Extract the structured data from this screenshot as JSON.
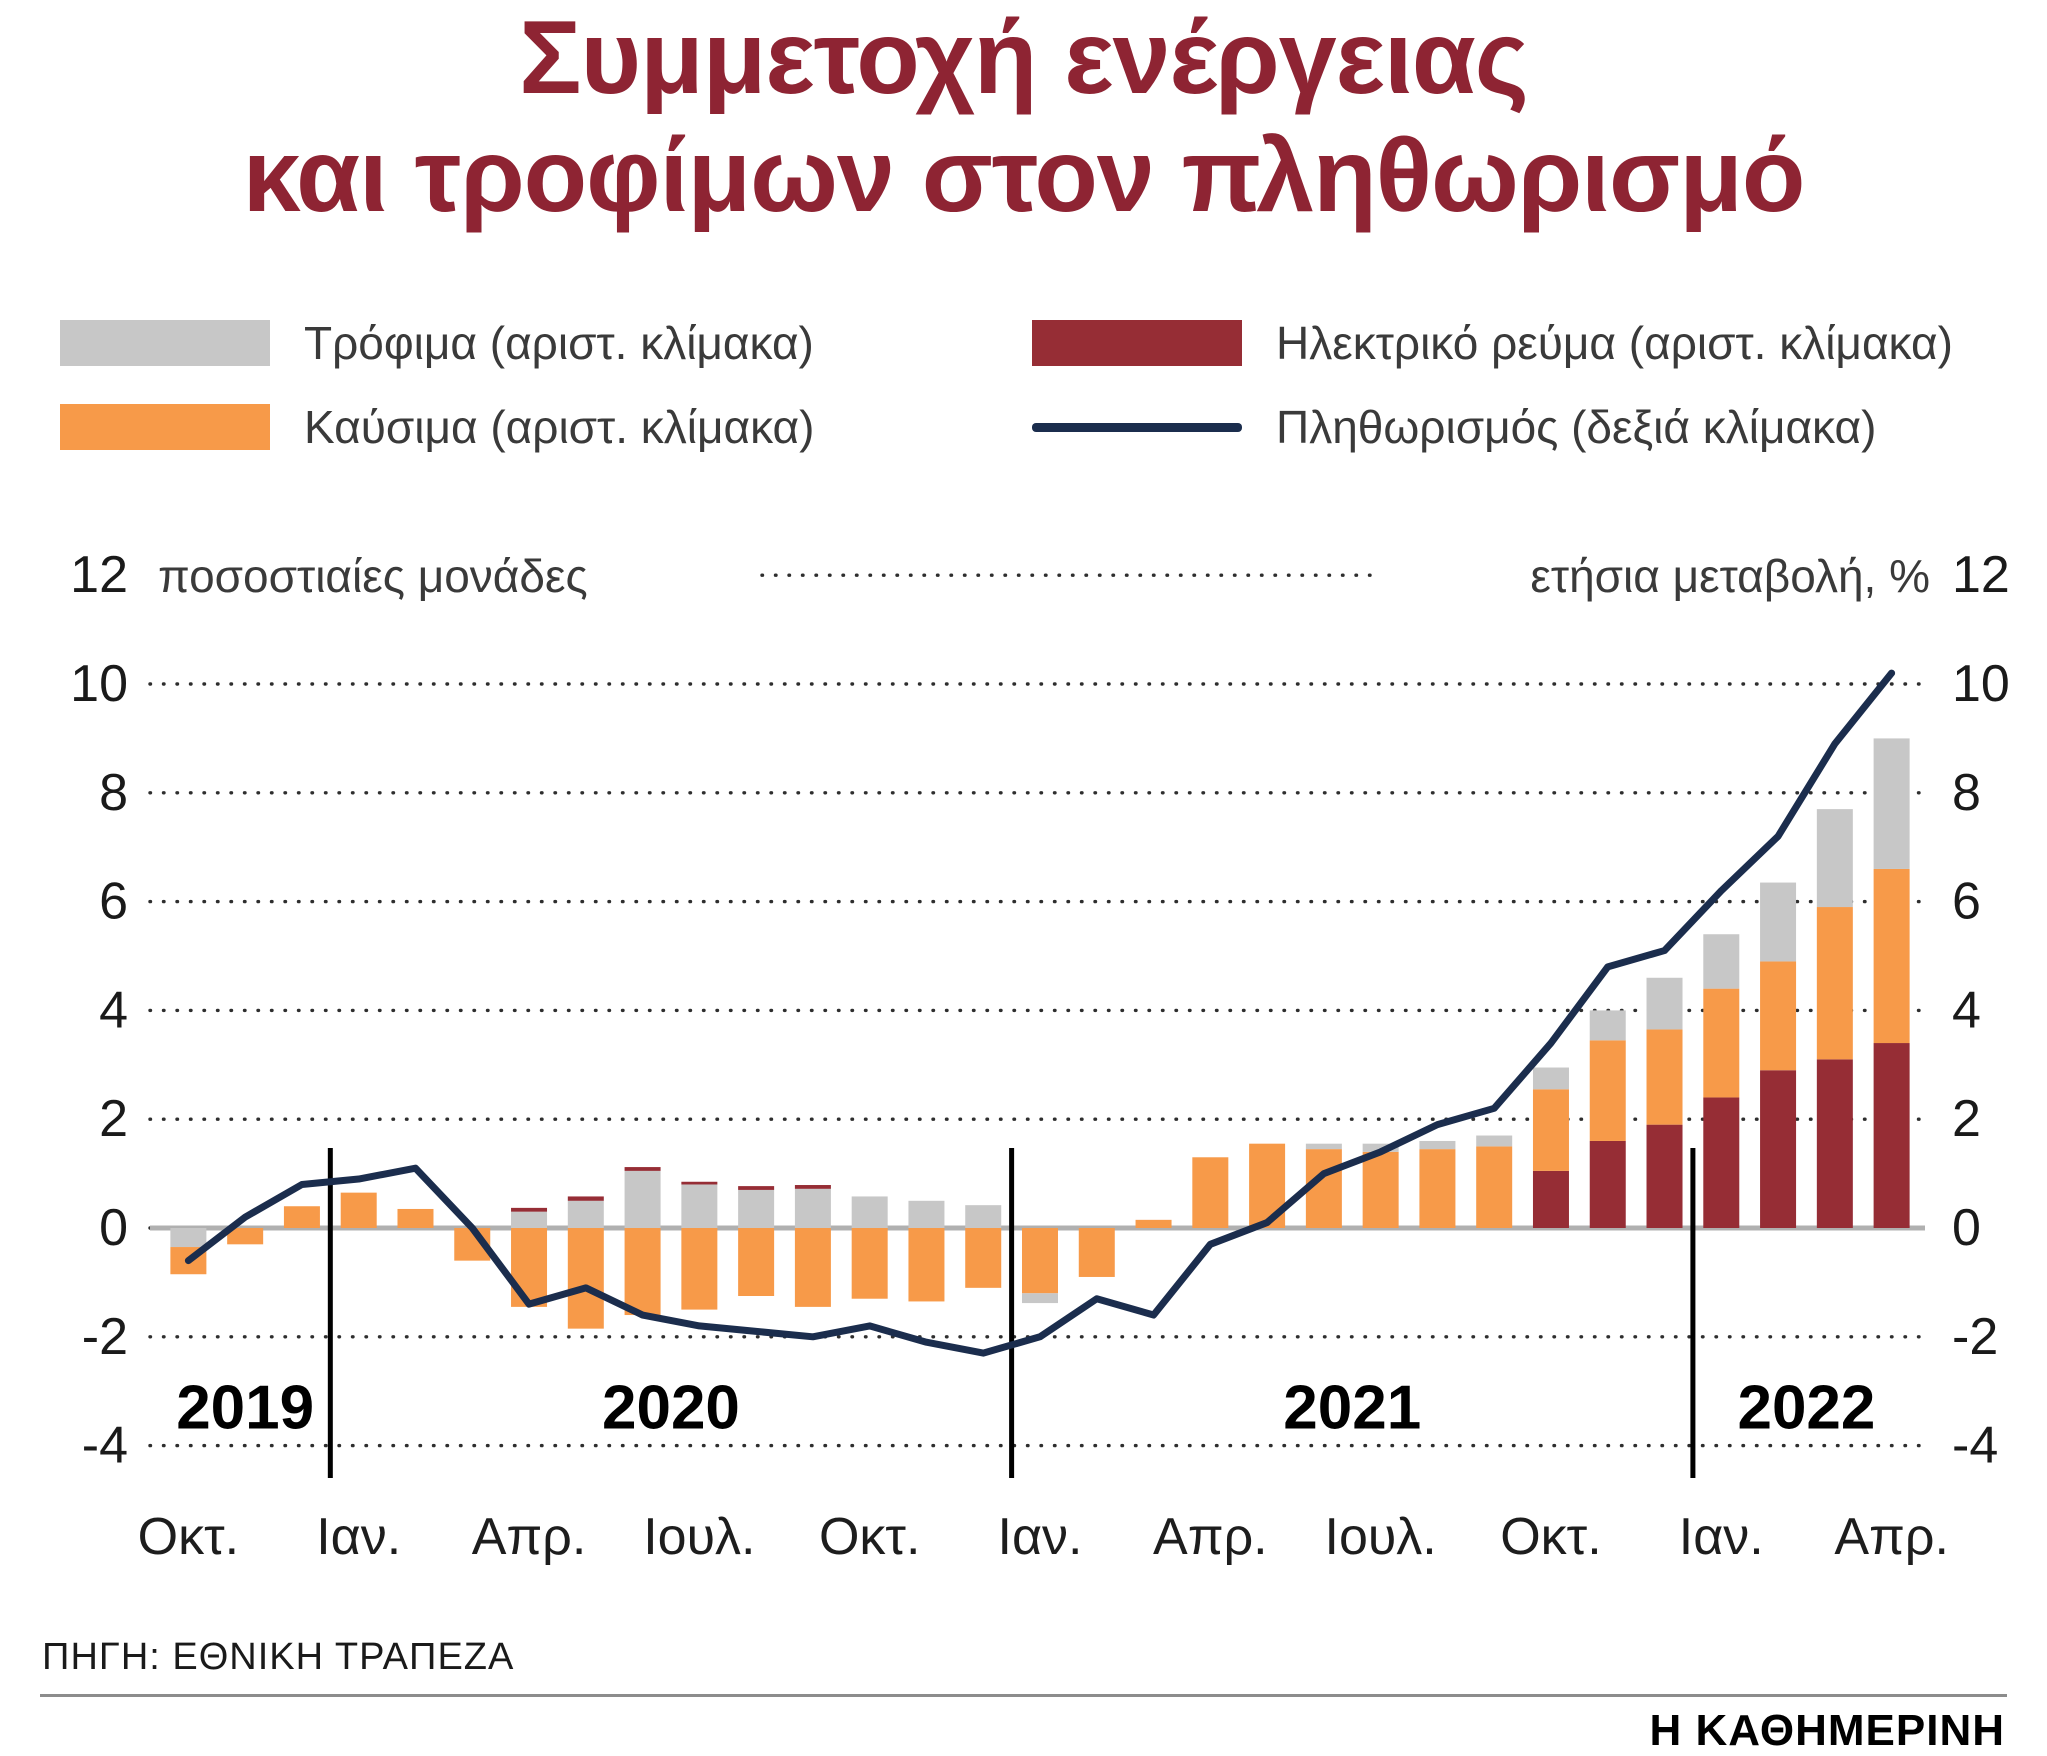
{
  "title": {
    "line1": "Συμμετοχή ενέργειας",
    "line2": "και τροφίμων στον πληθωρισμό"
  },
  "colors": {
    "title": "#8e2433",
    "bar_food": "#c7c7c7",
    "bar_fuel": "#f79a49",
    "bar_electricity": "#962d35",
    "inflation_line": "#1b2d4d"
  },
  "legend": [
    {
      "key": "food",
      "label": "Τρόφιμα (αριστ. κλίμακα)",
      "color": "#c7c7c7",
      "type": "rect"
    },
    {
      "key": "fuel",
      "label": "Καύσιμα (αριστ. κλίμακα)",
      "color": "#f79a49",
      "type": "rect"
    },
    {
      "key": "electricity",
      "label": "Ηλεκτρικό ρεύμα (αριστ. κλίμακα)",
      "color": "#962d35",
      "type": "rect"
    },
    {
      "key": "inflation",
      "label": "Πληθωρισμός (δεξιά κλίμακα)",
      "color": "#1b2d4d",
      "type": "line"
    }
  ],
  "axis_captions": {
    "left": "ποσοστιαίες μονάδες",
    "right": "ετήσια μεταβολή, %"
  },
  "chart_data": {
    "type": "bar",
    "stacked": true,
    "grid": true,
    "ylim": [
      -4,
      12
    ],
    "y_ticks": [
      12,
      10,
      8,
      6,
      4,
      2,
      0,
      -2,
      -4
    ],
    "left_axis_unit": "ποσοστιαίες μονάδες",
    "right_axis_unit": "ετήσια μεταβολή, %",
    "series_colors": {
      "food": "#c7c7c7",
      "fuel": "#f79a49",
      "elec": "#962d35"
    },
    "line_color": "#1b2d4d",
    "months": [
      "2019-10",
      "2019-11",
      "2019-12",
      "2020-01",
      "2020-02",
      "2020-03",
      "2020-04",
      "2020-05",
      "2020-06",
      "2020-07",
      "2020-08",
      "2020-09",
      "2020-10",
      "2020-11",
      "2020-12",
      "2021-01",
      "2021-02",
      "2021-03",
      "2021-04",
      "2021-05",
      "2021-06",
      "2021-07",
      "2021-08",
      "2021-09",
      "2021-10",
      "2021-11",
      "2021-12",
      "2022-01",
      "2022-02",
      "2022-03",
      "2022-04"
    ],
    "x_tick_labels": [
      {
        "index": 0,
        "label": "Οκτ."
      },
      {
        "index": 3,
        "label": "Ιαν."
      },
      {
        "index": 6,
        "label": "Απρ."
      },
      {
        "index": 9,
        "label": "Ιουλ."
      },
      {
        "index": 12,
        "label": "Οκτ."
      },
      {
        "index": 15,
        "label": "Ιαν."
      },
      {
        "index": 18,
        "label": "Απρ."
      },
      {
        "index": 21,
        "label": "Ιουλ."
      },
      {
        "index": 24,
        "label": "Οκτ."
      },
      {
        "index": 27,
        "label": "Ιαν."
      },
      {
        "index": 30,
        "label": "Απρ."
      }
    ],
    "year_labels": [
      {
        "label": "2019",
        "from": 0,
        "to": 2
      },
      {
        "label": "2020",
        "from": 3,
        "to": 14
      },
      {
        "label": "2021",
        "from": 15,
        "to": 26
      },
      {
        "label": "2022",
        "from": 27,
        "to": 30
      }
    ],
    "year_dividers_after_index": [
      2,
      14,
      26
    ],
    "bars": [
      {
        "month": "2019-10",
        "segments": [
          [
            "food",
            -0.35
          ],
          [
            "fuel",
            -0.5
          ]
        ]
      },
      {
        "month": "2019-11",
        "segments": [
          [
            "fuel",
            -0.3
          ]
        ]
      },
      {
        "month": "2019-12",
        "segments": [
          [
            "fuel",
            0.4
          ]
        ]
      },
      {
        "month": "2020-01",
        "segments": [
          [
            "fuel",
            0.65
          ]
        ]
      },
      {
        "month": "2020-02",
        "segments": [
          [
            "fuel",
            0.35
          ]
        ]
      },
      {
        "month": "2020-03",
        "segments": [
          [
            "fuel",
            -0.6
          ]
        ]
      },
      {
        "month": "2020-04",
        "segments": [
          [
            "food",
            0.3
          ],
          [
            "elec",
            0.07
          ],
          [
            "fuel",
            -1.45
          ]
        ]
      },
      {
        "month": "2020-05",
        "segments": [
          [
            "food",
            0.5
          ],
          [
            "elec",
            0.08
          ],
          [
            "fuel",
            -1.85
          ]
        ]
      },
      {
        "month": "2020-06",
        "segments": [
          [
            "food",
            1.05
          ],
          [
            "elec",
            0.07
          ],
          [
            "fuel",
            -1.6
          ]
        ]
      },
      {
        "month": "2020-07",
        "segments": [
          [
            "food",
            0.8
          ],
          [
            "elec",
            0.05
          ],
          [
            "fuel",
            -1.5
          ]
        ]
      },
      {
        "month": "2020-08",
        "segments": [
          [
            "food",
            0.7
          ],
          [
            "elec",
            0.07
          ],
          [
            "fuel",
            -1.25
          ]
        ]
      },
      {
        "month": "2020-09",
        "segments": [
          [
            "food",
            0.72
          ],
          [
            "elec",
            0.07
          ],
          [
            "fuel",
            -1.45
          ]
        ]
      },
      {
        "month": "2020-10",
        "segments": [
          [
            "food",
            0.58
          ],
          [
            "fuel",
            -1.3
          ]
        ]
      },
      {
        "month": "2020-11",
        "segments": [
          [
            "food",
            0.5
          ],
          [
            "fuel",
            -1.35
          ]
        ]
      },
      {
        "month": "2020-12",
        "segments": [
          [
            "food",
            0.42
          ],
          [
            "fuel",
            -1.1
          ]
        ]
      },
      {
        "month": "2021-01",
        "segments": [
          [
            "fuel",
            -1.2
          ],
          [
            "food",
            -0.18
          ]
        ]
      },
      {
        "month": "2021-02",
        "segments": [
          [
            "fuel",
            -0.9
          ]
        ]
      },
      {
        "month": "2021-03",
        "segments": [
          [
            "fuel",
            0.15
          ]
        ]
      },
      {
        "month": "2021-04",
        "segments": [
          [
            "fuel",
            1.3
          ]
        ]
      },
      {
        "month": "2021-05",
        "segments": [
          [
            "fuel",
            1.55
          ]
        ]
      },
      {
        "month": "2021-06",
        "segments": [
          [
            "fuel",
            1.45
          ],
          [
            "food",
            0.1
          ]
        ]
      },
      {
        "month": "2021-07",
        "segments": [
          [
            "fuel",
            1.4
          ],
          [
            "food",
            0.15
          ]
        ]
      },
      {
        "month": "2021-08",
        "segments": [
          [
            "fuel",
            1.45
          ],
          [
            "food",
            0.15
          ]
        ]
      },
      {
        "month": "2021-09",
        "segments": [
          [
            "fuel",
            1.5
          ],
          [
            "food",
            0.2
          ]
        ]
      },
      {
        "month": "2021-10",
        "segments": [
          [
            "elec",
            1.05
          ],
          [
            "fuel",
            1.5
          ],
          [
            "food",
            0.4
          ]
        ]
      },
      {
        "month": "2021-11",
        "segments": [
          [
            "elec",
            1.6
          ],
          [
            "fuel",
            1.85
          ],
          [
            "food",
            0.55
          ]
        ]
      },
      {
        "month": "2021-12",
        "segments": [
          [
            "elec",
            1.9
          ],
          [
            "fuel",
            1.75
          ],
          [
            "food",
            0.95
          ]
        ]
      },
      {
        "month": "2022-01",
        "segments": [
          [
            "elec",
            2.4
          ],
          [
            "fuel",
            2.0
          ],
          [
            "food",
            1.0
          ]
        ]
      },
      {
        "month": "2022-02",
        "segments": [
          [
            "elec",
            2.9
          ],
          [
            "fuel",
            2.0
          ],
          [
            "food",
            1.45
          ]
        ]
      },
      {
        "month": "2022-03",
        "segments": [
          [
            "elec",
            3.1
          ],
          [
            "fuel",
            2.8
          ],
          [
            "food",
            1.8
          ]
        ]
      },
      {
        "month": "2022-04",
        "segments": [
          [
            "elec",
            3.4
          ],
          [
            "fuel",
            3.2
          ],
          [
            "food",
            2.4
          ]
        ]
      }
    ],
    "inflation_line": [
      -0.6,
      0.2,
      0.8,
      0.9,
      1.1,
      0.0,
      -1.4,
      -1.1,
      -1.6,
      -1.8,
      -1.9,
      -2.0,
      -1.8,
      -2.1,
      -2.3,
      -2.0,
      -1.3,
      -1.6,
      -0.3,
      0.1,
      1.0,
      1.4,
      1.9,
      2.2,
      3.4,
      4.8,
      5.1,
      6.2,
      7.2,
      8.9,
      10.2
    ]
  },
  "source": "ΠΗΓΗ: ΕΘΝΙΚΗ ΤΡΑΠΕΖΑ",
  "masthead": "Η ΚΑΘΗΜΕΡΙΝΗ"
}
